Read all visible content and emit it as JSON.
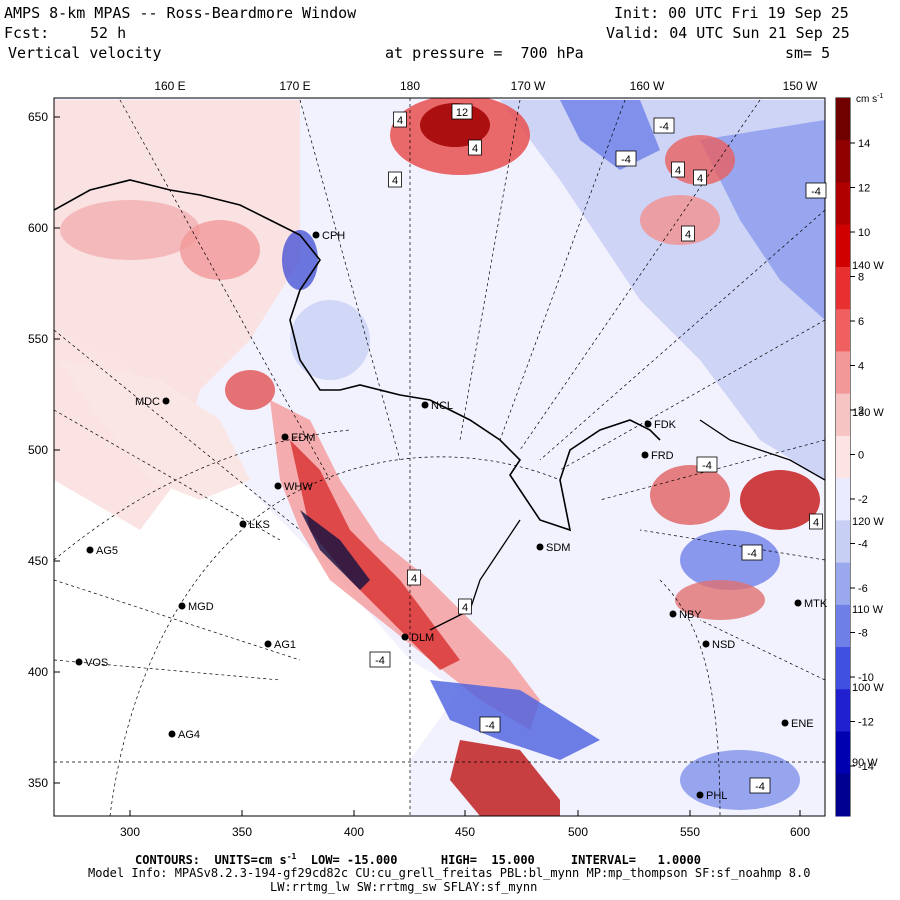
{
  "header": {
    "title": "AMPS 8-km MPAS -- Ross-Beardmore Window",
    "init": "Init: 00 UTC Fri 19 Sep 25",
    "fcst_label": "Fcst:",
    "fcst_value": "52 h",
    "valid": "Valid: 04 UTC Sun 21 Sep 25",
    "field": "Vertical velocity",
    "pressure": "at pressure =  700 hPa",
    "smoothing": "sm= 5"
  },
  "map": {
    "top_lon_labels": [
      "160 E",
      "170 E",
      "180",
      "170 W",
      "160 W",
      "150 W"
    ],
    "y_ticks": [
      "650",
      "600",
      "550",
      "500",
      "450",
      "400",
      "350"
    ],
    "x_ticks": [
      "300",
      "350",
      "400",
      "450",
      "500",
      "550",
      "600"
    ],
    "side_lon_labels": [
      "140 W",
      "130 W",
      "120 W",
      "110 W",
      "100 W",
      "90 W"
    ],
    "stations": [
      {
        "id": "CPH"
      },
      {
        "id": "NCL"
      },
      {
        "id": "MDC"
      },
      {
        "id": "FDK"
      },
      {
        "id": "FRD"
      },
      {
        "id": "WHW"
      },
      {
        "id": "LKS"
      },
      {
        "id": "SDM"
      },
      {
        "id": "AG5"
      },
      {
        "id": "MGD"
      },
      {
        "id": "NBY"
      },
      {
        "id": "MTK"
      },
      {
        "id": "AG1"
      },
      {
        "id": "NSD"
      },
      {
        "id": "VOS"
      },
      {
        "id": "ENE"
      },
      {
        "id": "AG4"
      },
      {
        "id": "PHL"
      },
      {
        "id": "DLM"
      },
      {
        "id": "EDM"
      }
    ],
    "contour_labels": [
      "4",
      "4",
      "12",
      "4",
      "-4",
      "-4",
      "4",
      "4",
      "4",
      "-4",
      "-4",
      "-4",
      "4",
      "4",
      "-4",
      "-4",
      "4",
      "-4"
    ],
    "colors": {
      "positive": "#c8102e",
      "negative": "#1c33c8",
      "neutral": "#f0f0ff"
    }
  },
  "colorbar": {
    "units": "cm s",
    "units_exp": "-1",
    "tick_labels": [
      "14",
      "12",
      "10",
      "8",
      "6",
      "4",
      "2",
      "0",
      "-2",
      "-4",
      "-6",
      "-8",
      "-10",
      "-12",
      "-14"
    ],
    "colors": [
      "#700000",
      "#900000",
      "#b00000",
      "#d00000",
      "#e83030",
      "#f06060",
      "#f39898",
      "#f7c4c4",
      "#fce4e4",
      "#ebebff",
      "#c8cff5",
      "#9aa8ee",
      "#6e80e8",
      "#4050e0",
      "#2020d0",
      "#0000b0",
      "#000090"
    ]
  },
  "footer": {
    "contours_prefix": "CONTOURS:  UNITS=cm s",
    "units_exp": "-1",
    "contours_rest": "  LOW= -15.000      HIGH=  15.000     INTERVAL=   1.0000",
    "model_info": "Model Info: MPASv8.2.3-194-gf29cd82c CU:cu_grell_freitas PBL:bl_mynn MP:mp_thompson SF:sf_noahmp 8.0",
    "model_info_2": "LW:rrtmg_lw SW:rrtmg_sw SFLAY:sf_mynn"
  }
}
